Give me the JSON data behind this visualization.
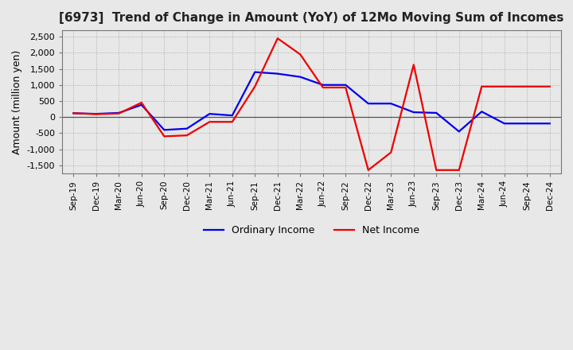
{
  "title": "[6973]  Trend of Change in Amount (YoY) of 12Mo Moving Sum of Incomes",
  "ylabel": "Amount (million yen)",
  "title_color": "#222222",
  "background_color": "#e8e8e8",
  "plot_bg_color": "#e8e8e8",
  "grid_color": "#aaaaaa",
  "ylim": [
    -1750,
    2700
  ],
  "yticks": [
    -1500,
    -1000,
    -500,
    0,
    500,
    1000,
    1500,
    2000,
    2500
  ],
  "x_labels": [
    "Sep-19",
    "Dec-19",
    "Mar-20",
    "Jun-20",
    "Sep-20",
    "Dec-20",
    "Mar-21",
    "Jun-21",
    "Sep-21",
    "Dec-21",
    "Mar-22",
    "Jun-22",
    "Sep-22",
    "Dec-22",
    "Mar-23",
    "Jun-23",
    "Sep-23",
    "Dec-23",
    "Mar-24",
    "Jun-24",
    "Sep-24",
    "Dec-24"
  ],
  "ordinary_income": [
    120,
    100,
    130,
    380,
    -400,
    -360,
    100,
    50,
    1400,
    1350,
    1250,
    1000,
    1000,
    420,
    420,
    150,
    130,
    -450,
    170,
    -200,
    -200,
    -200
  ],
  "net_income": [
    120,
    90,
    110,
    450,
    -600,
    -570,
    -150,
    -150,
    950,
    2450,
    1950,
    920,
    920,
    -1650,
    -1100,
    1630,
    -1650,
    -1650,
    950,
    950,
    950,
    950
  ],
  "ordinary_color": "#0000ee",
  "net_color": "#ee0000",
  "line_width": 1.6
}
